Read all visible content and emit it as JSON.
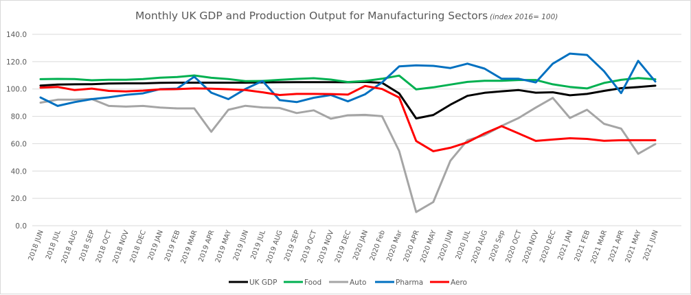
{
  "chart_data": {
    "type": "line",
    "title": "Monthly UK GDP and Production Output for Manufacturing Sectors",
    "subtitle": "(index 2016= 100)",
    "xlabel": "",
    "ylabel": "",
    "ylim": [
      0,
      140
    ],
    "yticks": [
      0,
      20,
      40,
      60,
      80,
      100,
      120,
      140
    ],
    "ytick_labels": [
      "0.0",
      "20.0",
      "40.0",
      "60.0",
      "80.0",
      "100.0",
      "120.0",
      "140.0"
    ],
    "grid": true,
    "legend_position": "bottom",
    "categories": [
      "2018 JUN",
      "2018 JUL",
      "2018 AUG",
      "2018 SEP",
      "2018 OCT",
      "2018 NOV",
      "2018 DEC",
      "2019 JAN",
      "2019 FEB",
      "2019 MAR",
      "2019 APR",
      "2019 MAY",
      "2019 JUN",
      "2019 JUL",
      "2019 AUG",
      "2019 SEP",
      "2019 OCT",
      "2019 NOV",
      "2019 DEC",
      "2020 JAN",
      "2020 Feb",
      "2020 Mar",
      "2020 APR",
      "2020 MAY",
      "2020 JUN",
      "2020 JUL",
      "2020 AUG",
      "2020 Sep",
      "2020 OCT",
      "2020 NOV",
      "2020 DEC",
      "2021 JAN",
      "2021 FEB",
      "2021 MAR",
      "2021 APR",
      "2021 MAY",
      "2021 JUN"
    ],
    "series": [
      {
        "name": "UK GDP",
        "color": "#000000",
        "values": [
          102.5,
          103.2,
          103.4,
          103.5,
          104.0,
          104.1,
          104.1,
          104.5,
          104.6,
          104.6,
          104.6,
          104.6,
          104.6,
          104.8,
          104.9,
          105.0,
          105.0,
          105.0,
          104.9,
          105.2,
          104.5,
          96.8,
          78.5,
          81.0,
          88.5,
          95.0,
          97.2,
          98.3,
          99.2,
          97.3,
          97.6,
          95.4,
          96.4,
          98.6,
          100.6,
          101.4,
          102.4
        ]
      },
      {
        "name": "Food",
        "color": "#00b050",
        "values": [
          107.2,
          107.4,
          107.3,
          106.4,
          106.8,
          106.8,
          107.3,
          108.3,
          108.8,
          109.9,
          108.2,
          107.3,
          105.8,
          105.9,
          106.7,
          107.4,
          107.9,
          106.9,
          105.1,
          105.9,
          107.5,
          109.8,
          99.7,
          101.2,
          103.2,
          105.2,
          106.0,
          106.0,
          106.6,
          106.6,
          103.4,
          101.5,
          100.4,
          104.4,
          106.7,
          108.0,
          107.1
        ]
      },
      {
        "name": "Auto",
        "color": "#a5a5a5",
        "values": [
          90.0,
          92.2,
          92.2,
          92.7,
          87.6,
          87.1,
          87.6,
          86.4,
          85.8,
          85.8,
          68.7,
          84.8,
          87.7,
          86.5,
          86.1,
          82.4,
          84.4,
          78.3,
          80.8,
          81.1,
          80.1,
          54.7,
          10.0,
          17.3,
          47.5,
          62.5,
          66.3,
          73.0,
          78.8,
          86.4,
          93.5,
          78.8,
          84.8,
          74.5,
          71.0,
          52.6,
          59.7
        ]
      },
      {
        "name": "Pharma",
        "color": "#0070c0",
        "values": [
          93.8,
          87.6,
          90.4,
          92.6,
          93.9,
          95.7,
          96.8,
          99.9,
          100.3,
          109.0,
          97.3,
          92.6,
          100.0,
          105.9,
          91.9,
          90.4,
          93.6,
          95.6,
          91.0,
          96.1,
          104.8,
          116.5,
          117.3,
          116.9,
          115.3,
          118.5,
          114.9,
          107.5,
          107.5,
          104.8,
          118.5,
          125.9,
          124.9,
          113.0,
          97.0,
          120.6,
          105.5
        ]
      },
      {
        "name": "Aero",
        "color": "#ff0000",
        "values": [
          101.0,
          101.5,
          99.2,
          100.3,
          98.6,
          98.2,
          98.8,
          99.7,
          99.9,
          100.4,
          100.2,
          99.8,
          99.2,
          97.6,
          95.6,
          96.4,
          96.4,
          96.3,
          95.9,
          102.2,
          100.0,
          93.8,
          61.9,
          54.5,
          57.0,
          61.0,
          67.5,
          72.8,
          67.5,
          62.0,
          63.0,
          64.0,
          63.5,
          62.1,
          62.5,
          62.5,
          62.5
        ]
      }
    ]
  }
}
